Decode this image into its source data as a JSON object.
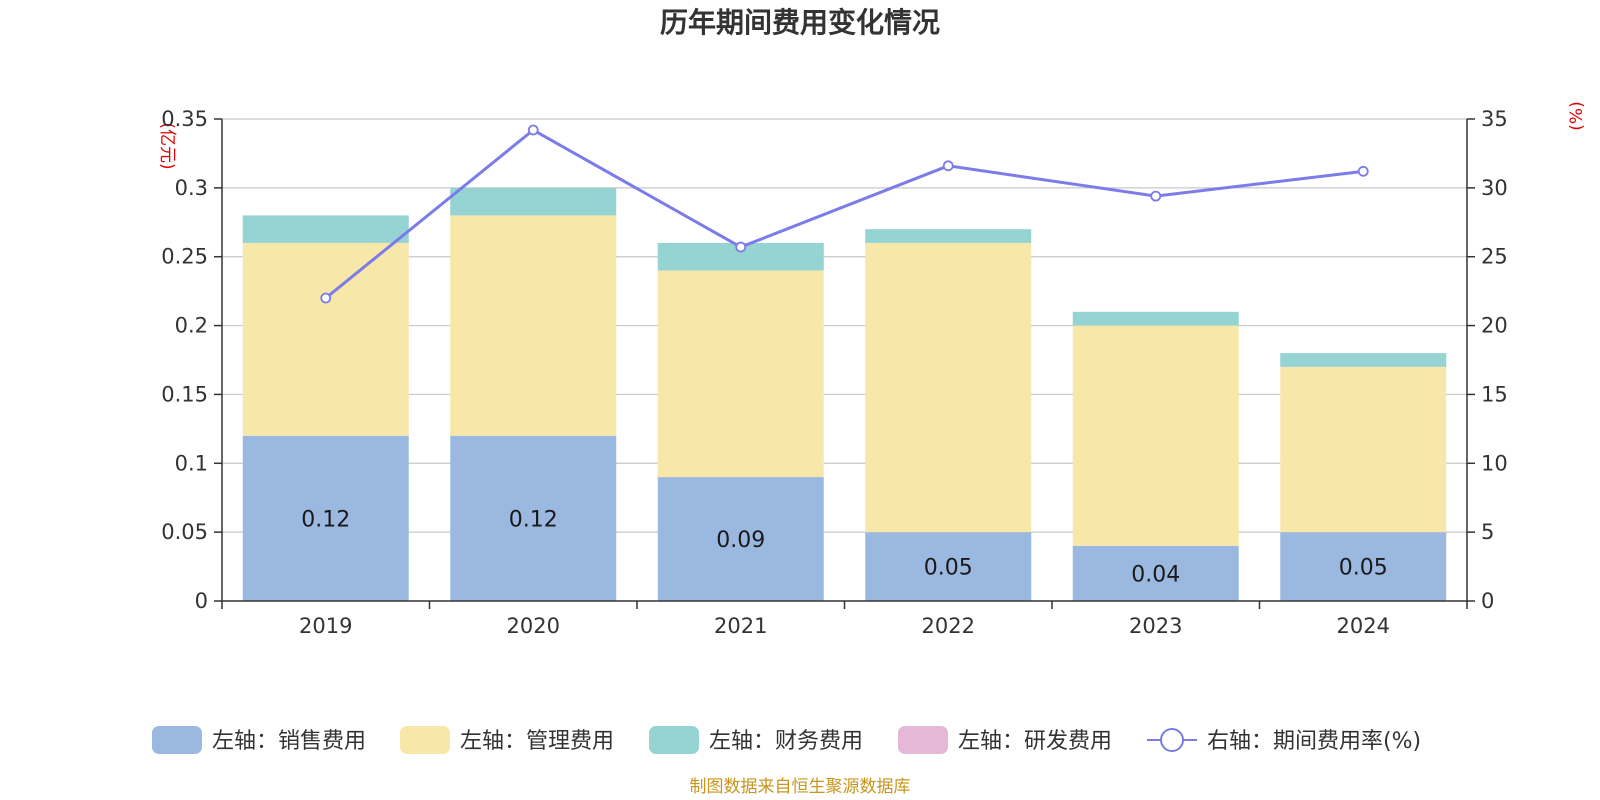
{
  "chart_data": {
    "type": "bar",
    "stacked": true,
    "title": "历年期间费用变化情况",
    "categories": [
      "2019",
      "2020",
      "2021",
      "2022",
      "2023",
      "2024"
    ],
    "left_axis": {
      "unit": "(亿元)",
      "ylim": [
        0,
        0.35
      ],
      "ticks": [
        "0",
        "0.05",
        "0.1",
        "0.15",
        "0.2",
        "0.25",
        "0.3",
        "0.35"
      ]
    },
    "right_axis": {
      "unit": "(%)",
      "ylim": [
        0,
        35
      ],
      "ticks": [
        "0",
        "5",
        "10",
        "15",
        "20",
        "25",
        "30",
        "35"
      ]
    },
    "series": [
      {
        "name": "左轴：销售费用",
        "kind": "bar",
        "axis": "left",
        "color": "#9bb8e0",
        "values": [
          0.12,
          0.12,
          0.09,
          0.05,
          0.04,
          0.05
        ],
        "labels": [
          "0.12",
          "0.12",
          "0.09",
          "0.05",
          "0.04",
          "0.05"
        ]
      },
      {
        "name": "左轴：管理费用",
        "kind": "bar",
        "axis": "left",
        "color": "#f7e7a9",
        "values": [
          0.14,
          0.16,
          0.15,
          0.21,
          0.16,
          0.12
        ]
      },
      {
        "name": "左轴：财务费用",
        "kind": "bar",
        "axis": "left",
        "color": "#96d4d4",
        "values": [
          0.02,
          0.02,
          0.02,
          0.01,
          0.01,
          0.01
        ]
      },
      {
        "name": "左轴：研发费用",
        "kind": "bar",
        "axis": "left",
        "color": "#e6b8d8",
        "values": [
          0,
          0,
          0,
          0,
          0,
          0
        ]
      },
      {
        "name": "右轴：期间费用率(%)",
        "kind": "line",
        "axis": "right",
        "color": "#7b7bea",
        "values": [
          22.0,
          34.2,
          25.7,
          31.6,
          29.4,
          31.2
        ]
      }
    ],
    "grid": true,
    "legend_position": "bottom"
  },
  "source_note": "制图数据来自恒生聚源数据库"
}
